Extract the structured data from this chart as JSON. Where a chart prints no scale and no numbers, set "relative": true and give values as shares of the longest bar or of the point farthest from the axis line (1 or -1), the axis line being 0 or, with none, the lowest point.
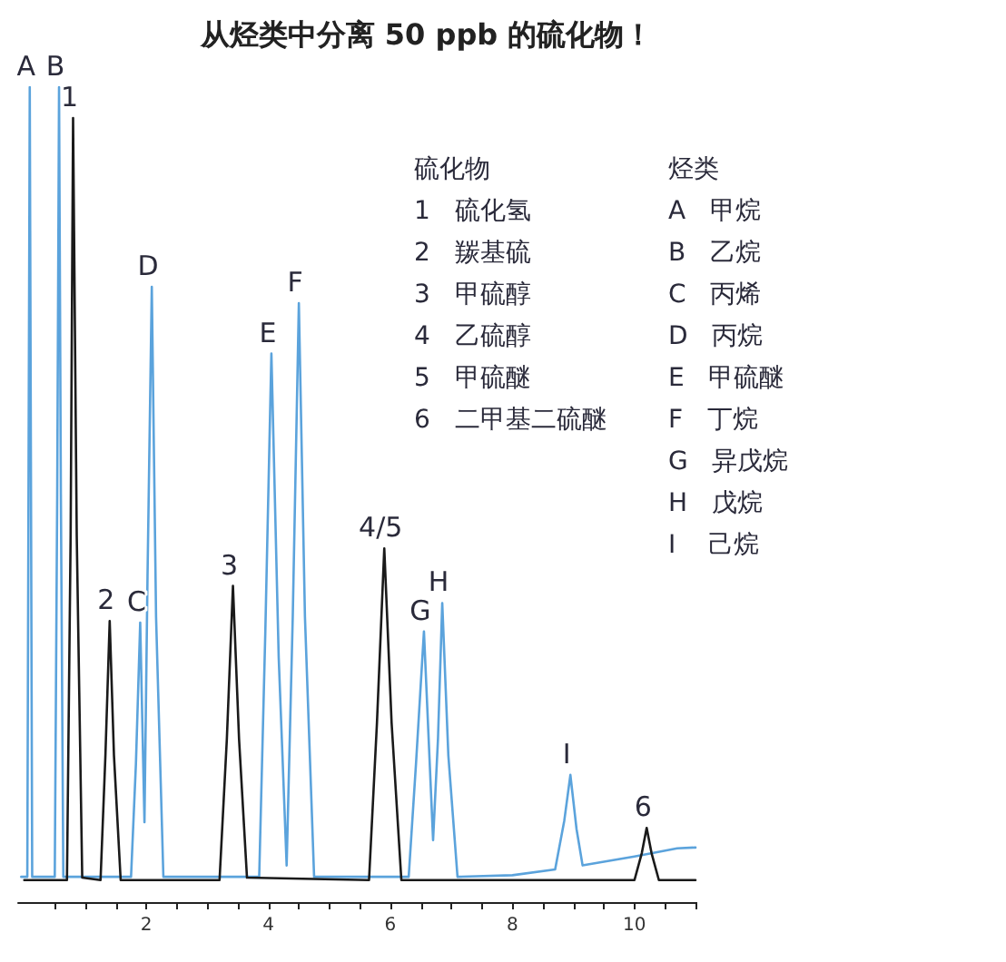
{
  "chart_data": {
    "type": "line",
    "title": "从烃类中分离 50 ppb 的硫化物！",
    "relative": true,
    "grid": false,
    "marker": "none",
    "line_style": "solid",
    "xlim": [
      -0.1,
      11.0
    ],
    "xticks": [
      {
        "value": 0.5,
        "label": null
      },
      {
        "value": 1,
        "label": null
      },
      {
        "value": 1.5,
        "label": null
      },
      2,
      {
        "value": 2.5,
        "label": null
      },
      {
        "value": 3,
        "label": null
      },
      {
        "value": 3.5,
        "label": null
      },
      4,
      {
        "value": 4.5,
        "label": null
      },
      {
        "value": 5,
        "label": null
      },
      {
        "value": 5.5,
        "label": null
      },
      6,
      {
        "value": 6.5,
        "label": null
      },
      {
        "value": 7,
        "label": null
      },
      {
        "value": 7.5,
        "label": null
      },
      8,
      {
        "value": 8.5,
        "label": null
      },
      {
        "value": 9,
        "label": null
      },
      {
        "value": 9.5,
        "label": null
      },
      10,
      {
        "value": 10.5,
        "label": null
      },
      {
        "value": 11,
        "label": null
      }
    ],
    "series": [
      {
        "color": "#5ba3dc",
        "x": [
          -0.05,
          0.05,
          0.09,
          0.13,
          0.5,
          0.54,
          0.57,
          0.6,
          0.64,
          1.75,
          1.83,
          1.9,
          1.97,
          2.02,
          2.09,
          2.16,
          2.28,
          3.85,
          3.95,
          4.05,
          4.17,
          4.3,
          4.4,
          4.5,
          4.6,
          4.75,
          6.3,
          6.42,
          6.55,
          6.7,
          6.78,
          6.85,
          6.95,
          7.1,
          8.0,
          8.7,
          8.85,
          8.95,
          9.05,
          9.15,
          10.0,
          10.7,
          11.0
        ],
        "values": [
          0.031,
          0.031,
          1.0,
          0.031,
          0.031,
          0.5,
          1.0,
          0.5,
          0.031,
          0.031,
          0.17,
          0.343,
          0.098,
          0.4,
          0.755,
          0.35,
          0.031,
          0.031,
          0.33,
          0.673,
          0.3,
          0.045,
          0.35,
          0.735,
          0.35,
          0.031,
          0.031,
          0.17,
          0.332,
          0.076,
          0.2,
          0.367,
          0.18,
          0.031,
          0.033,
          0.04,
          0.1,
          0.156,
          0.09,
          0.045,
          0.056,
          0.066,
          0.067
        ]
      },
      {
        "color": "#1a1a1a",
        "x": [
          0.0,
          0.7,
          0.76,
          0.8,
          0.86,
          0.95,
          1.25,
          1.33,
          1.4,
          1.47,
          1.58,
          3.2,
          3.32,
          3.42,
          3.52,
          3.65,
          5.65,
          5.78,
          5.9,
          6.02,
          6.18,
          10.0,
          10.12,
          10.2,
          10.28,
          10.4,
          11.0
        ],
        "values": [
          0.027,
          0.027,
          0.45,
          0.962,
          0.45,
          0.03,
          0.027,
          0.18,
          0.345,
          0.18,
          0.027,
          0.027,
          0.2,
          0.388,
          0.2,
          0.03,
          0.027,
          0.22,
          0.434,
          0.22,
          0.027,
          0.027,
          0.06,
          0.091,
          0.06,
          0.027,
          0.027
        ]
      }
    ],
    "annotations": [
      {
        "text": "A",
        "x": 0.09,
        "y": 1.0
      },
      {
        "text": "B",
        "x": 0.57,
        "y": 1.0
      },
      {
        "text": "1",
        "x": 0.8,
        "y": 0.962
      },
      {
        "text": "2",
        "x": 1.4,
        "y": 0.345
      },
      {
        "text": "C",
        "x": 1.9,
        "y": 0.343
      },
      {
        "text": "D",
        "x": 2.09,
        "y": 0.755
      },
      {
        "text": "3",
        "x": 3.42,
        "y": 0.388
      },
      {
        "text": "E",
        "x": 4.05,
        "y": 0.673
      },
      {
        "text": "F",
        "x": 4.5,
        "y": 0.735
      },
      {
        "text": "4/5",
        "x": 5.9,
        "y": 0.434
      },
      {
        "text": "G",
        "x": 6.55,
        "y": 0.332
      },
      {
        "text": "H",
        "x": 6.85,
        "y": 0.367
      },
      {
        "text": "I",
        "x": 8.95,
        "y": 0.156
      },
      {
        "text": "6",
        "x": 10.2,
        "y": 0.091
      },
      "硫化物\n1   硫化氢\n2   羰基硫\n3   甲硫醇\n4   乙硫醇\n5   甲硫醚\n6   二甲基二硫醚",
      "烃类\nA   甲烷\nB   乙烷\nC   丙烯\nD   丙烷\nE   甲硫醚\nF   丁烷\nG   异戊烷\nH   戊烷\nI    己烷"
    ]
  }
}
